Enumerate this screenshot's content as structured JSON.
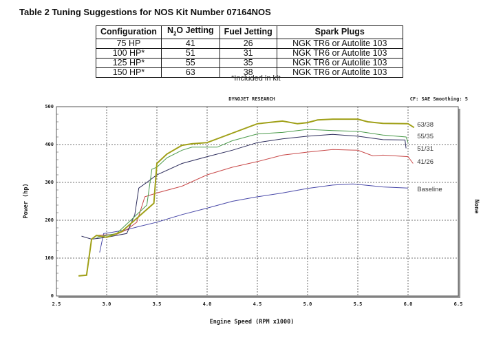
{
  "table": {
    "title": "Table 2  Tuning Suggestions for NOS Kit Number 07164NOS",
    "headers": [
      "Configuration",
      "N2O Jetting",
      "Fuel Jetting",
      "Spark Plugs"
    ],
    "rows": [
      [
        "75 HP",
        "41",
        "26",
        "NGK TR6 or Autolite 103"
      ],
      [
        "100 HP*",
        "51",
        "31",
        "NGK TR6 or Autolite 103"
      ],
      [
        "125 HP*",
        "55",
        "35",
        "NGK TR6 or Autolite 103"
      ],
      [
        "150 HP*",
        "63",
        "38",
        "NGK TR6 or Autolite 103"
      ]
    ],
    "note": "*Included in kit"
  },
  "chart_data": {
    "type": "line",
    "title": "DYNOJET RESEARCH",
    "subtitle": "CF: SAE  Smoothing: 5",
    "xlabel": "Engine Speed (RPM x1000)",
    "ylabel": "Power (hp)",
    "right_label": "None",
    "xlim": [
      2.5,
      6.5
    ],
    "ylim": [
      0,
      500
    ],
    "xticks": [
      "2.5",
      "3.0",
      "3.5",
      "4.0",
      "4.5",
      "5.0",
      "5.5",
      "6.0",
      "6.5"
    ],
    "yticks": [
      "0",
      "100",
      "200",
      "300",
      "400",
      "500"
    ],
    "grid": true,
    "series": [
      {
        "name": "Baseline",
        "color": "#4848a8",
        "points": [
          [
            2.93,
            115
          ],
          [
            2.97,
            165
          ],
          [
            3.05,
            168
          ],
          [
            3.2,
            175
          ],
          [
            3.3,
            182
          ],
          [
            3.5,
            195
          ],
          [
            3.75,
            215
          ],
          [
            4.0,
            232
          ],
          [
            4.25,
            250
          ],
          [
            4.5,
            262
          ],
          [
            4.75,
            272
          ],
          [
            5.0,
            284
          ],
          [
            5.25,
            293
          ],
          [
            5.45,
            296
          ],
          [
            5.6,
            292
          ],
          [
            5.75,
            288
          ],
          [
            6.0,
            285
          ]
        ]
      },
      {
        "name": "41/26",
        "color": "#c84848",
        "points": [
          [
            2.9,
            160
          ],
          [
            3.1,
            163
          ],
          [
            3.2,
            175
          ],
          [
            3.3,
            195
          ],
          [
            3.38,
            262
          ],
          [
            3.5,
            272
          ],
          [
            3.75,
            290
          ],
          [
            4.0,
            320
          ],
          [
            4.25,
            340
          ],
          [
            4.5,
            355
          ],
          [
            4.75,
            372
          ],
          [
            5.0,
            380
          ],
          [
            5.25,
            387
          ],
          [
            5.5,
            385
          ],
          [
            5.65,
            370
          ],
          [
            5.75,
            372
          ],
          [
            6.0,
            368
          ],
          [
            6.05,
            350
          ]
        ]
      },
      {
        "name": "51/31",
        "color": "#2a2a5a",
        "points": [
          [
            2.75,
            158
          ],
          [
            2.85,
            150
          ],
          [
            3.0,
            155
          ],
          [
            3.2,
            165
          ],
          [
            3.28,
            215
          ],
          [
            3.32,
            285
          ],
          [
            3.4,
            300
          ],
          [
            3.5,
            320
          ],
          [
            3.75,
            350
          ],
          [
            4.0,
            368
          ],
          [
            4.25,
            385
          ],
          [
            4.5,
            405
          ],
          [
            4.75,
            415
          ],
          [
            5.0,
            422
          ],
          [
            5.25,
            427
          ],
          [
            5.5,
            422
          ],
          [
            5.75,
            413
          ],
          [
            5.97,
            412
          ],
          [
            5.98,
            390
          ]
        ]
      },
      {
        "name": "55/35",
        "color": "#4a9a4a",
        "points": [
          [
            2.9,
            155
          ],
          [
            3.1,
            165
          ],
          [
            3.4,
            240
          ],
          [
            3.45,
            335
          ],
          [
            3.5,
            340
          ],
          [
            3.6,
            365
          ],
          [
            3.75,
            385
          ],
          [
            3.85,
            393
          ],
          [
            4.1,
            393
          ],
          [
            4.25,
            410
          ],
          [
            4.5,
            428
          ],
          [
            4.75,
            432
          ],
          [
            5.0,
            440
          ],
          [
            5.25,
            437
          ],
          [
            5.5,
            435
          ],
          [
            5.75,
            425
          ],
          [
            5.98,
            420
          ],
          [
            6.0,
            405
          ]
        ]
      },
      {
        "name": "63/38",
        "color": "#a0a018",
        "points": [
          [
            2.72,
            53
          ],
          [
            2.8,
            55
          ],
          [
            2.85,
            150
          ],
          [
            2.9,
            160
          ],
          [
            3.0,
            155
          ],
          [
            3.15,
            170
          ],
          [
            3.47,
            245
          ],
          [
            3.5,
            350
          ],
          [
            3.6,
            375
          ],
          [
            3.75,
            398
          ],
          [
            3.85,
            402
          ],
          [
            4.0,
            405
          ],
          [
            4.25,
            430
          ],
          [
            4.5,
            455
          ],
          [
            4.75,
            462
          ],
          [
            4.9,
            455
          ],
          [
            5.0,
            458
          ],
          [
            5.1,
            465
          ],
          [
            5.25,
            467
          ],
          [
            5.5,
            467
          ],
          [
            5.6,
            460
          ],
          [
            5.75,
            456
          ],
          [
            6.0,
            455
          ],
          [
            6.06,
            445
          ]
        ]
      }
    ]
  }
}
